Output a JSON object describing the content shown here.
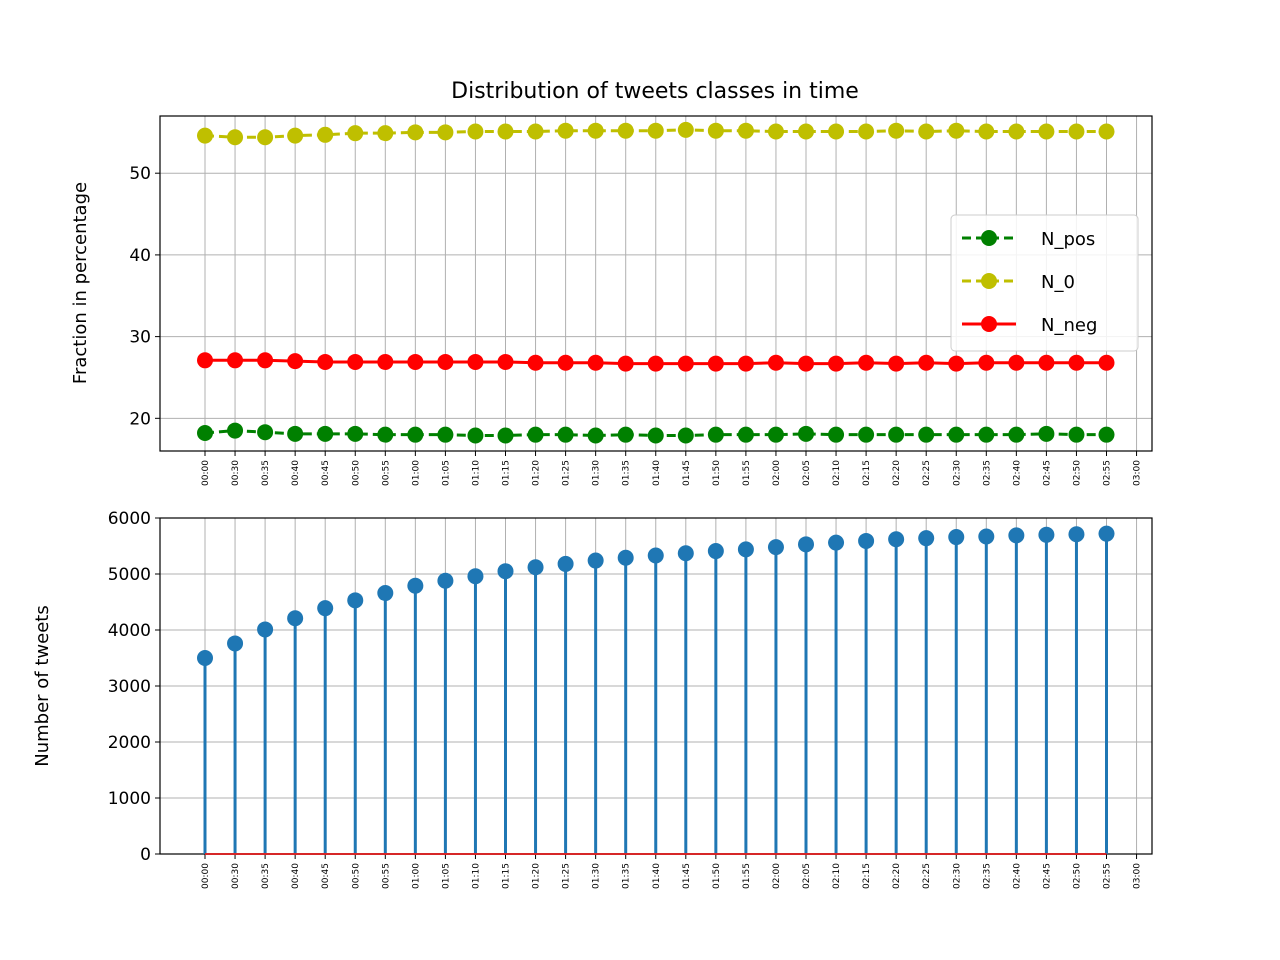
{
  "chart_data": [
    {
      "type": "line",
      "title": "Distribution of tweets classes in time",
      "xlabel": "",
      "ylabel": "Fraction in percentage",
      "ylim": [
        16,
        57
      ],
      "yticks": [
        20,
        30,
        40,
        50
      ],
      "grid": true,
      "legend_position": "center-right",
      "xticks": [
        "00:00",
        "00:30",
        "00:35",
        "00:40",
        "00:45",
        "00:50",
        "00:55",
        "01:00",
        "01:05",
        "01:10",
        "01:15",
        "01:20",
        "01:25",
        "01:30",
        "01:35",
        "01:40",
        "01:45",
        "01:50",
        "01:55",
        "02:00",
        "02:05",
        "02:10",
        "02:15",
        "02:20",
        "02:25",
        "02:30",
        "02:35",
        "02:40",
        "02:45",
        "02:50",
        "02:55",
        "03:00"
      ],
      "categories": [
        "00:00",
        "00:30",
        "00:35",
        "00:40",
        "00:45",
        "00:50",
        "00:55",
        "01:00",
        "01:05",
        "01:10",
        "01:15",
        "01:20",
        "01:25",
        "01:30",
        "01:35",
        "01:40",
        "01:45",
        "01:50",
        "01:55",
        "02:00",
        "02:05",
        "02:10",
        "02:15",
        "02:20",
        "02:25",
        "02:30",
        "02:35",
        "02:40",
        "02:45",
        "02:50",
        "02:55"
      ],
      "series": [
        {
          "name": "N_pos",
          "color": "#008000",
          "style": "dashed",
          "values": [
            18.2,
            18.5,
            18.3,
            18.1,
            18.1,
            18.1,
            18.0,
            18.0,
            18.0,
            17.9,
            17.9,
            18.0,
            18.0,
            17.9,
            18.0,
            17.9,
            17.9,
            18.0,
            18.0,
            18.0,
            18.1,
            18.0,
            18.0,
            18.0,
            18.0,
            18.0,
            18.0,
            18.0,
            18.1,
            18.0,
            18.0
          ]
        },
        {
          "name": "N_0",
          "color": "#bfbf00",
          "style": "dashed",
          "values": [
            54.6,
            54.4,
            54.4,
            54.6,
            54.7,
            54.9,
            54.9,
            55.0,
            55.0,
            55.1,
            55.1,
            55.1,
            55.2,
            55.2,
            55.2,
            55.2,
            55.3,
            55.2,
            55.2,
            55.1,
            55.1,
            55.1,
            55.1,
            55.2,
            55.1,
            55.2,
            55.1,
            55.1,
            55.1,
            55.1,
            55.1
          ]
        },
        {
          "name": "N_neg",
          "color": "#ff0000",
          "style": "solid",
          "values": [
            27.1,
            27.1,
            27.1,
            27.0,
            26.9,
            26.9,
            26.9,
            26.9,
            26.9,
            26.9,
            26.9,
            26.8,
            26.8,
            26.8,
            26.7,
            26.7,
            26.7,
            26.7,
            26.7,
            26.8,
            26.7,
            26.7,
            26.8,
            26.7,
            26.8,
            26.7,
            26.8,
            26.8,
            26.8,
            26.8,
            26.8
          ]
        }
      ]
    },
    {
      "type": "stem",
      "title": "",
      "xlabel": "",
      "ylabel": "Number of tweets",
      "ylim": [
        0,
        6000
      ],
      "yticks": [
        0,
        1000,
        2000,
        3000,
        4000,
        5000,
        6000
      ],
      "grid": true,
      "color": "#1f77b4",
      "baseline_color": "#d62728",
      "xticks": [
        "00:00",
        "00:30",
        "00:35",
        "00:40",
        "00:45",
        "00:50",
        "00:55",
        "01:00",
        "01:05",
        "01:10",
        "01:15",
        "01:20",
        "01:25",
        "01:30",
        "01:35",
        "01:40",
        "01:45",
        "01:50",
        "01:55",
        "02:00",
        "02:05",
        "02:10",
        "02:15",
        "02:20",
        "02:25",
        "02:30",
        "02:35",
        "02:40",
        "02:45",
        "02:50",
        "02:55",
        "03:00"
      ],
      "categories": [
        "00:00",
        "00:30",
        "00:35",
        "00:40",
        "00:45",
        "00:50",
        "00:55",
        "01:00",
        "01:05",
        "01:10",
        "01:15",
        "01:20",
        "01:25",
        "01:30",
        "01:35",
        "01:40",
        "01:45",
        "01:50",
        "01:55",
        "02:00",
        "02:05",
        "02:10",
        "02:15",
        "02:20",
        "02:25",
        "02:30",
        "02:35",
        "02:40",
        "02:45",
        "02:50",
        "02:55"
      ],
      "values": [
        3500,
        3760,
        4010,
        4210,
        4390,
        4530,
        4660,
        4790,
        4880,
        4960,
        5050,
        5120,
        5180,
        5240,
        5290,
        5330,
        5370,
        5410,
        5440,
        5480,
        5530,
        5560,
        5590,
        5620,
        5640,
        5660,
        5670,
        5690,
        5700,
        5710,
        5720
      ]
    }
  ]
}
